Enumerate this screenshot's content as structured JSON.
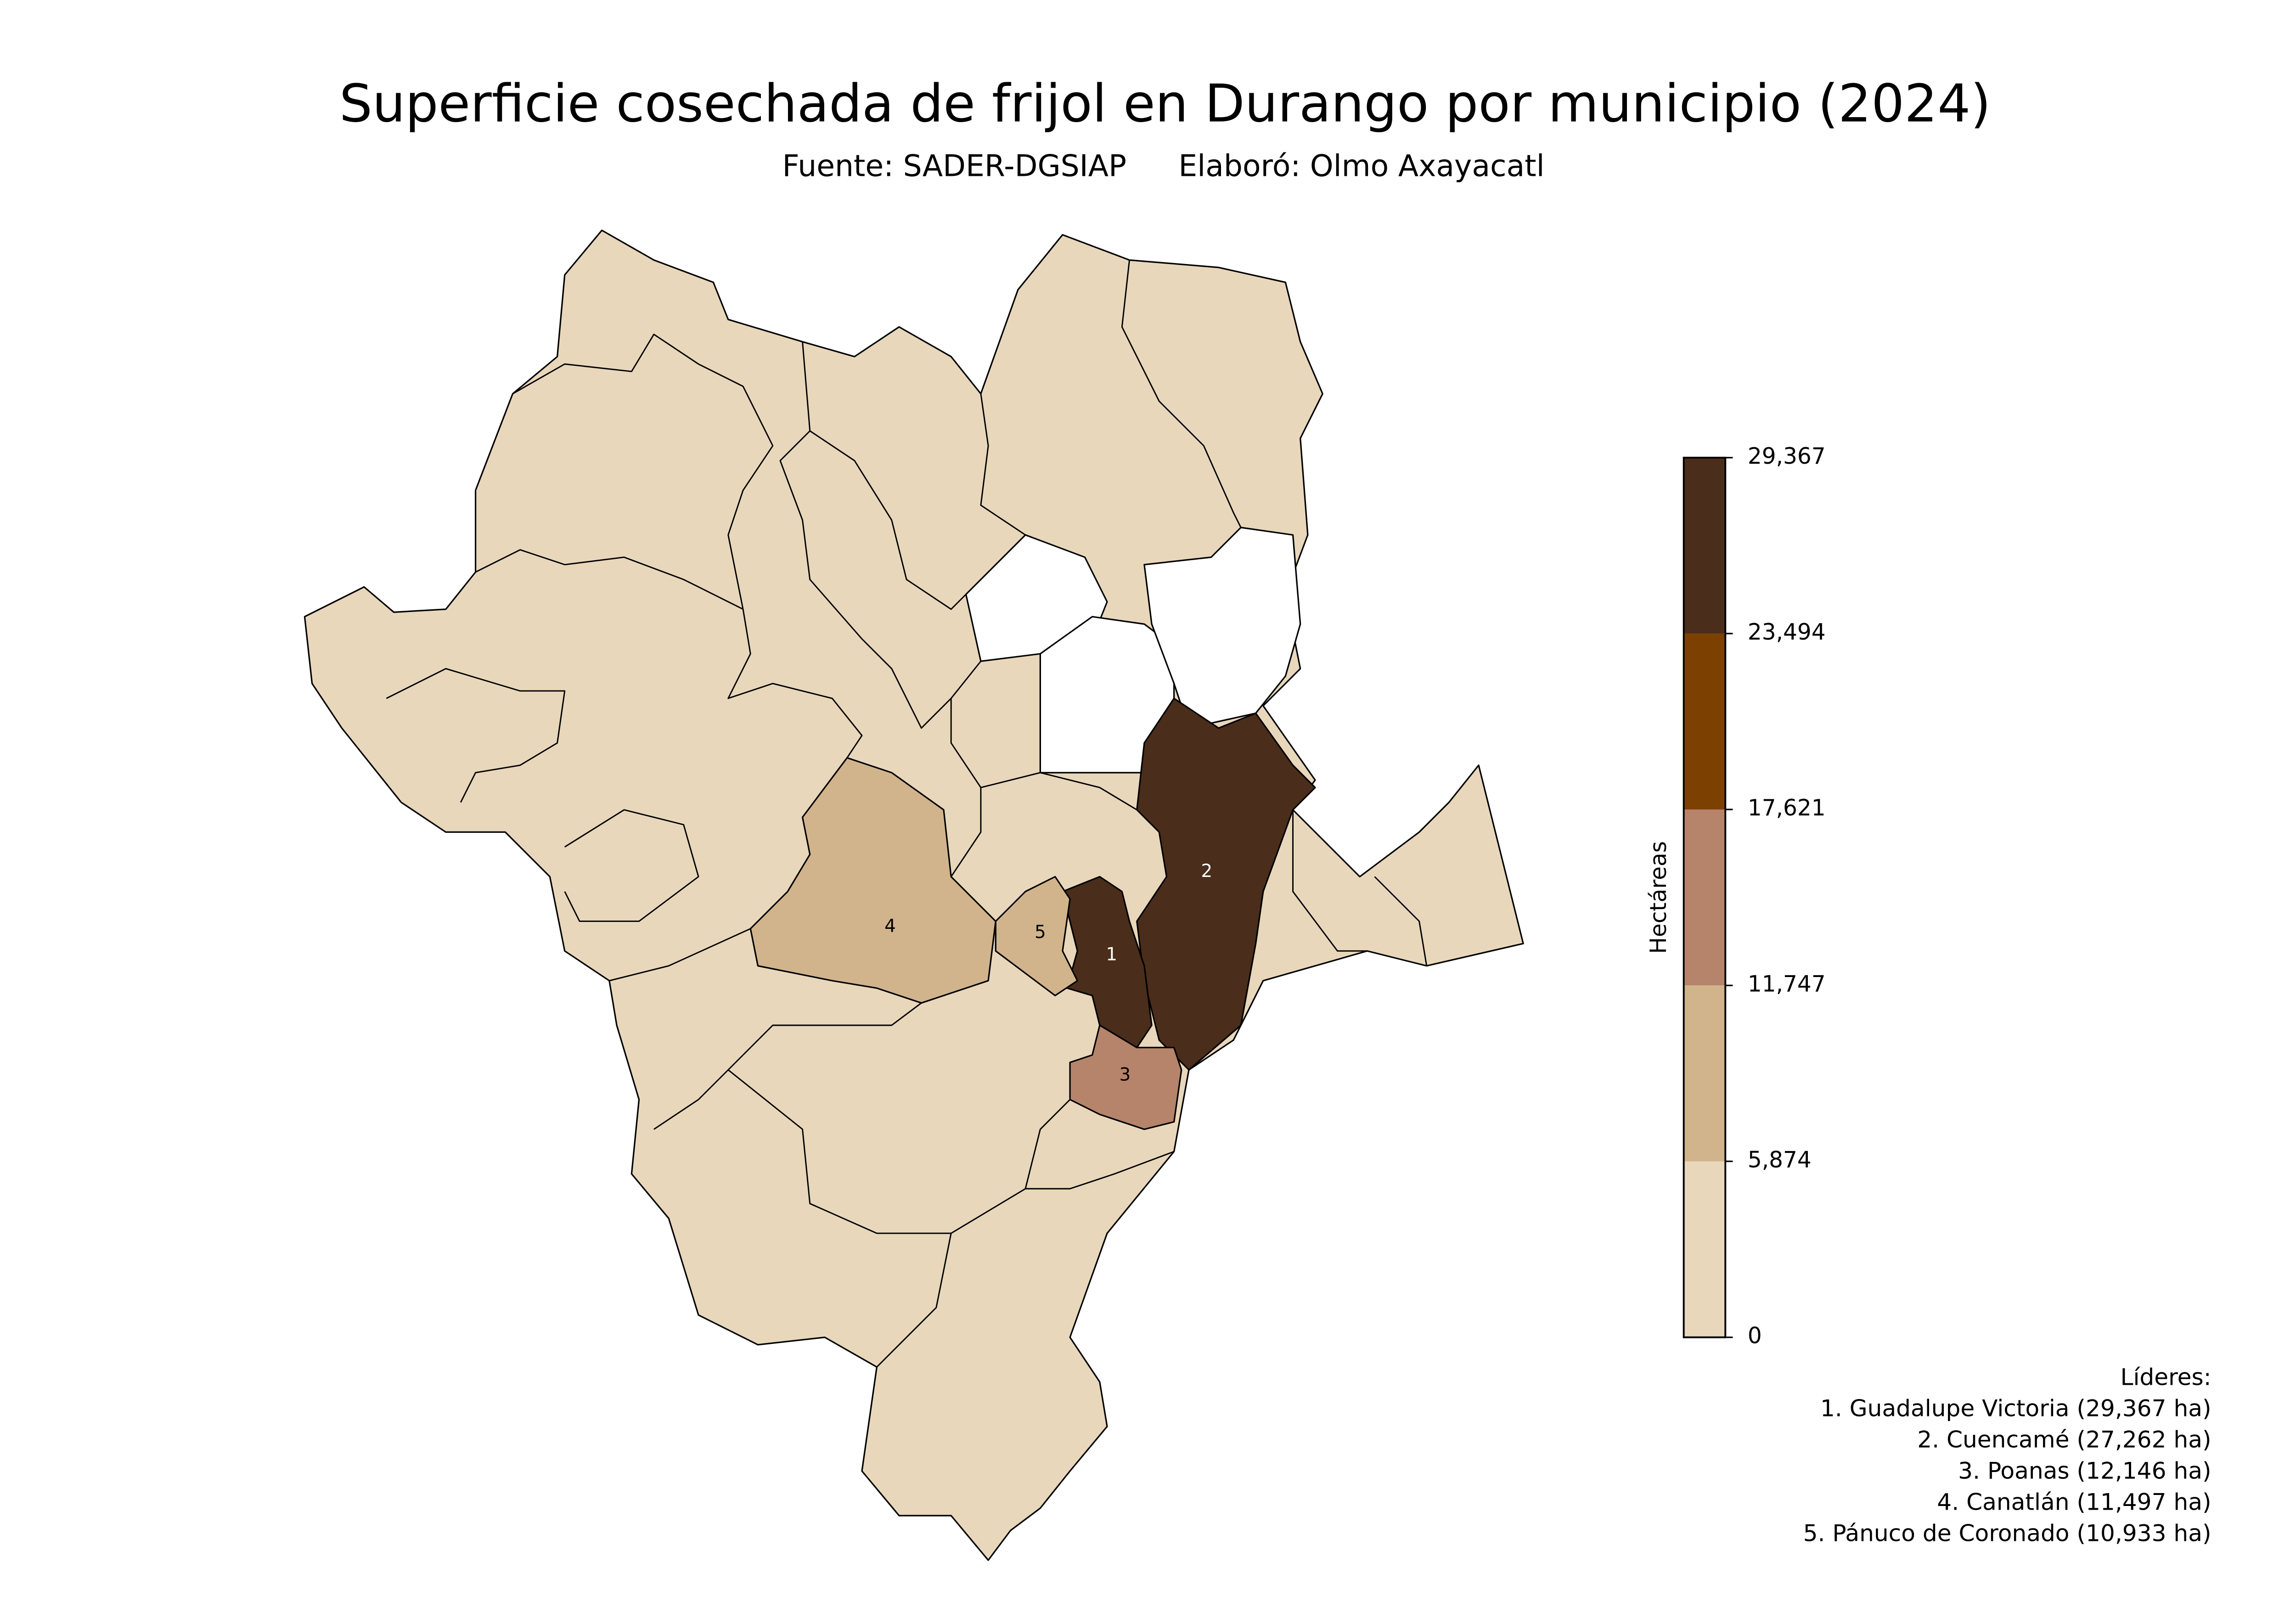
{
  "header": {
    "title": "Superficie cosechada de frijol en Durango por municipio (2024)",
    "source": "Fuente: SADER-DGSIAP",
    "author": "Elaboró: Olmo Axayacatl"
  },
  "map": {
    "labels": [
      "1",
      "2",
      "3",
      "4",
      "5"
    ]
  },
  "colorbar": {
    "label": "Hectáreas",
    "ticks": [
      0,
      {
        "value": 5874,
        "label": "5,874"
      },
      {
        "value": 11747,
        "label": "11,747"
      },
      {
        "value": 17621,
        "label": "17,621"
      },
      {
        "value": 23494,
        "label": "23,494"
      },
      {
        "value": 29367,
        "label": "29,367"
      }
    ],
    "colors": [
      "#e8d7bb",
      "#d1b48c",
      "#b6846a",
      "#7c4001",
      "#4a2d1a"
    ]
  },
  "leaders": {
    "title": "Líderes:",
    "items": [
      "1. Guadalupe Victoria (29,367 ha)",
      "2. Cuencamé (27,262 ha)",
      "3. Poanas (12,146 ha)",
      "4. Canatlán (11,497 ha)",
      "5. Pánuco de Coronado (10,933 ha)"
    ]
  }
}
